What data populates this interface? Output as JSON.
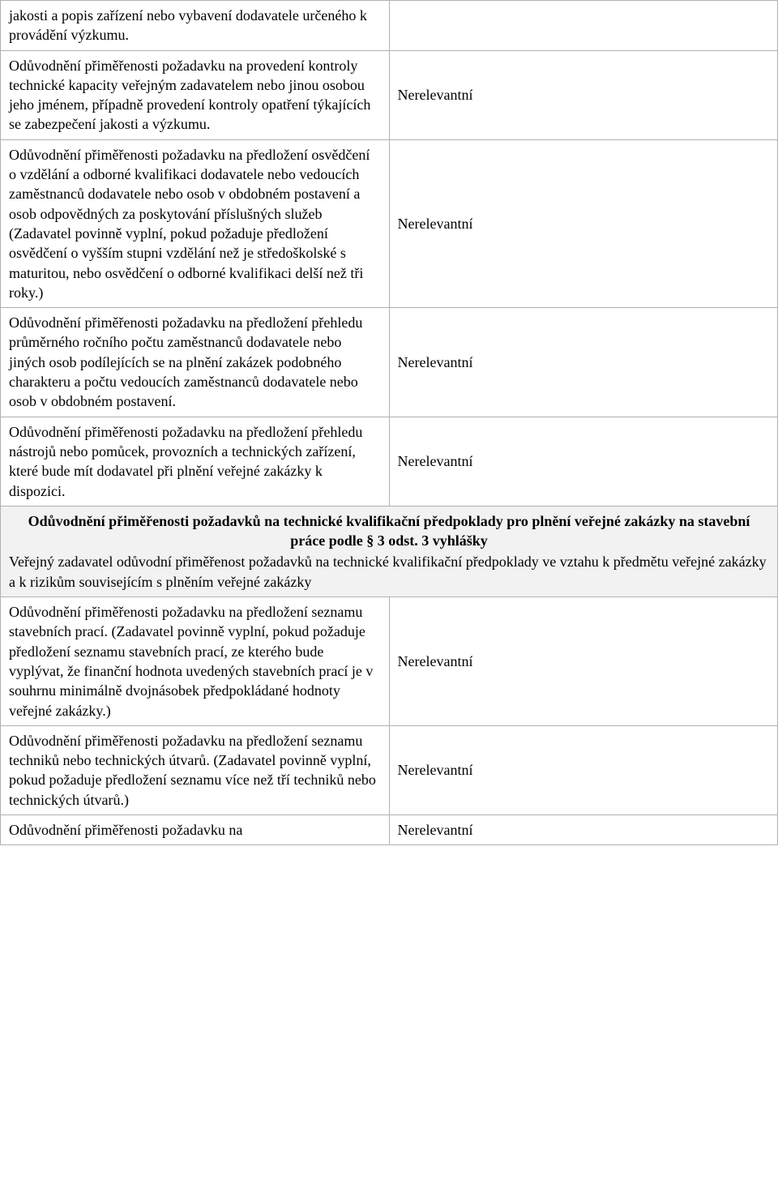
{
  "table": {
    "border_color": "#b0b0b0",
    "background_color": "#ffffff",
    "header_background": "#f2f2f2",
    "font_family": "Times New Roman",
    "font_size_pt": 12
  },
  "rows": {
    "r0": {
      "left": "jakosti a popis zařízení nebo vybavení dodavatele určeného k provádění výzkumu.",
      "right": ""
    },
    "r1": {
      "left": "Odůvodnění přiměřenosti požadavku na provedení kontroly technické kapacity veřejným zadavatelem nebo jinou osobou jeho jménem, případně provedení kontroly opatření týkajících se zabezpečení jakosti a výzkumu.",
      "right": "Nerelevantní"
    },
    "r2": {
      "left": "Odůvodnění přiměřenosti požadavku na předložení osvědčení o vzdělání a odborné kvalifikaci dodavatele nebo vedoucích zaměstnanců dodavatele nebo osob v obdobném postavení a osob odpovědných za poskytování příslušných služeb (Zadavatel povinně vyplní, pokud požaduje předložení osvědčení o vyšším stupni vzdělání než je středoškolské s maturitou, nebo osvědčení o odborné kvalifikaci delší než tři roky.)",
      "right": "Nerelevantní"
    },
    "r3": {
      "left": "Odůvodnění přiměřenosti požadavku na předložení přehledu průměrného ročního počtu zaměstnanců dodavatele nebo jiných osob podílejících se na plnění zakázek podobného charakteru a počtu vedoucích zaměstnanců dodavatele nebo osob v obdobném postavení.",
      "right": "Nerelevantní"
    },
    "r4": {
      "left": "Odůvodnění přiměřenosti požadavku na předložení přehledu nástrojů nebo pomůcek, provozních a technických zařízení, které bude mít dodavatel při plnění veřejné zakázky k dispozici.",
      "right": "Nerelevantní"
    },
    "section": {
      "title": "Odůvodnění přiměřenosti požadavků na technické kvalifikační předpoklady pro plnění veřejné zakázky na stavební práce podle § 3 odst. 3 vyhlášky",
      "para": "Veřejný zadavatel odůvodní přiměřenost požadavků na technické kvalifikační předpoklady ve vztahu k předmětu veřejné zakázky a k rizikům souvisejícím s plněním veřejné zakázky"
    },
    "r5": {
      "left": "Odůvodnění přiměřenosti požadavku na předložení seznamu stavebních prací. (Zadavatel povinně vyplní, pokud požaduje předložení seznamu stavebních prací, ze kterého bude vyplývat, že finanční hodnota uvedených stavebních prací je v souhrnu minimálně dvojnásobek předpokládané hodnoty veřejné zakázky.)",
      "right": "Nerelevantní"
    },
    "r6": {
      "left": "Odůvodnění přiměřenosti požadavku na předložení seznamu techniků nebo technických útvarů. (Zadavatel povinně vyplní, pokud požaduje předložení seznamu více než tří techniků nebo technických útvarů.)",
      "right": "Nerelevantní"
    },
    "r7": {
      "left": "Odůvodnění přiměřenosti požadavku na",
      "right": "Nerelevantní"
    }
  }
}
